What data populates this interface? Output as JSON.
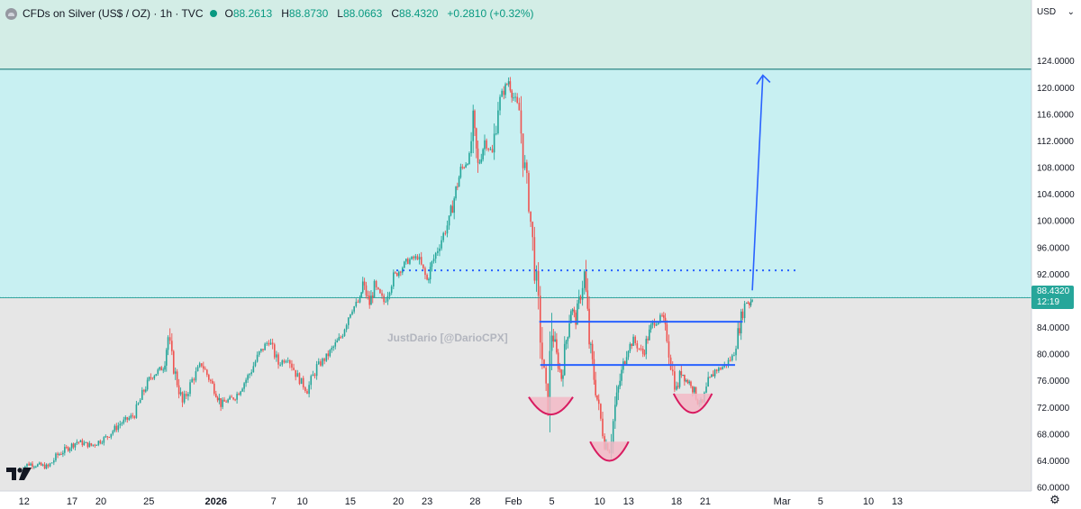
{
  "legend": {
    "title": "CFDs on Silver (US$ / OZ) · 1h · TVC",
    "open_label": "O",
    "open": "88.2613",
    "high_label": "H",
    "high": "88.8730",
    "low_label": "L",
    "low": "88.0663",
    "close_label": "C",
    "close": "88.4320",
    "change": "+0.2810 (+0.32%)"
  },
  "currency": "USD",
  "watermark": "JustDario [@DarioCPX]",
  "current_price": {
    "value": "88.4320",
    "countdown": "12:19"
  },
  "colors": {
    "up": "#26a69a",
    "down": "#ef5350",
    "blue_zone": "#c8f0f2",
    "upper_zone": "#d3ede6",
    "lower_zone": "#e6e6e6",
    "drawing_blue": "#2962ff",
    "cup_pink": "#f2b8c6",
    "cup_stroke": "#d81b60"
  },
  "icons": {
    "symbol": "metal-symbol-icon",
    "settings": "gear-icon",
    "currency_dropdown": "chevron-down-icon",
    "logo": "tradingview-logo-icon"
  },
  "chart_data": {
    "type": "candlestick",
    "title": "CFDs on Silver (US$ / OZ)",
    "timeframe": "1h",
    "source": "TVC",
    "ylim": [
      60,
      126
    ],
    "y_ticks": [
      "124.0000",
      "120.0000",
      "116.0000",
      "112.0000",
      "108.0000",
      "104.0000",
      "100.0000",
      "96.0000",
      "92.0000",
      "88.0000",
      "84.0000",
      "80.0000",
      "76.0000",
      "72.0000",
      "68.0000",
      "64.0000",
      "60.0000"
    ],
    "x_ticks": [
      {
        "label": "12",
        "day": -8
      },
      {
        "label": "17",
        "day": -3
      },
      {
        "label": "20",
        "day": 0
      },
      {
        "label": "25",
        "day": 5
      },
      {
        "label": "2026",
        "day": 12
      },
      {
        "label": "7",
        "day": 18
      },
      {
        "label": "10",
        "day": 21
      },
      {
        "label": "15",
        "day": 26
      },
      {
        "label": "20",
        "day": 31
      },
      {
        "label": "23",
        "day": 34
      },
      {
        "label": "28",
        "day": 39
      },
      {
        "label": "Feb",
        "day": 43
      },
      {
        "label": "5",
        "day": 47
      },
      {
        "label": "10",
        "day": 52
      },
      {
        "label": "13",
        "day": 55
      },
      {
        "label": "18",
        "day": 60
      },
      {
        "label": "21",
        "day": 63
      },
      {
        "label": "Mar",
        "day": 71
      },
      {
        "label": "5",
        "day": 75
      },
      {
        "label": "10",
        "day": 80
      },
      {
        "label": "13",
        "day": 83
      }
    ],
    "price_path": [
      [
        -8.7,
        62.5
      ],
      [
        -7.5,
        63.5
      ],
      [
        -5.5,
        63.0
      ],
      [
        -4.5,
        64.8
      ],
      [
        -2.5,
        66.8
      ],
      [
        -1,
        66.2
      ],
      [
        0.5,
        67.4
      ],
      [
        2,
        69.5
      ],
      [
        3.5,
        70.8
      ],
      [
        4.5,
        74.5
      ],
      [
        5.2,
        76.5
      ],
      [
        6.5,
        78.0
      ],
      [
        7.0,
        82.5
      ],
      [
        7.4,
        79.0
      ],
      [
        8.5,
        72.5
      ],
      [
        9.5,
        76.0
      ],
      [
        10.5,
        78.5
      ],
      [
        12,
        74.2
      ],
      [
        12.5,
        72.5
      ],
      [
        14,
        73.5
      ],
      [
        15.5,
        77.0
      ],
      [
        16.5,
        80.0
      ],
      [
        17.5,
        82.0
      ],
      [
        18.5,
        78.5
      ],
      [
        19.5,
        79.5
      ],
      [
        20.5,
        76.5
      ],
      [
        21.5,
        74.5
      ],
      [
        22.5,
        78.0
      ],
      [
        23.5,
        79.5
      ],
      [
        25,
        82.5
      ],
      [
        26,
        86.5
      ],
      [
        27,
        88.0
      ],
      [
        27.3,
        90.5
      ],
      [
        28,
        87.5
      ],
      [
        28.5,
        90.0
      ],
      [
        29.5,
        87.8
      ],
      [
        30.5,
        91.5
      ],
      [
        32,
        94.0
      ],
      [
        33,
        94.5
      ],
      [
        34,
        91.0
      ],
      [
        34.5,
        93.5
      ],
      [
        35.3,
        96.5
      ],
      [
        36.3,
        100.0
      ],
      [
        37.0,
        104.5
      ],
      [
        37.5,
        107.5
      ],
      [
        38.4,
        109.5
      ],
      [
        38.8,
        114.5
      ],
      [
        39.3,
        108.0
      ],
      [
        40.0,
        112.0
      ],
      [
        40.8,
        110.0
      ],
      [
        41.4,
        117.5
      ],
      [
        42.0,
        119.5
      ],
      [
        42.5,
        121.0
      ],
      [
        43.0,
        118.5
      ],
      [
        43.6,
        116.5
      ],
      [
        44.0,
        110.0
      ],
      [
        44.6,
        103.0
      ],
      [
        45.0,
        96.5
      ],
      [
        45.4,
        90.0
      ],
      [
        45.8,
        83.0
      ],
      [
        46.2,
        76.0
      ],
      [
        46.6,
        72.2
      ],
      [
        47.0,
        84.0
      ],
      [
        47.5,
        79.5
      ],
      [
        48.0,
        76.5
      ],
      [
        48.5,
        82.0
      ],
      [
        49.0,
        87.0
      ],
      [
        49.5,
        85.0
      ],
      [
        50.0,
        89.0
      ],
      [
        50.4,
        92.0
      ],
      [
        50.9,
        82.0
      ],
      [
        51.4,
        76.5
      ],
      [
        51.9,
        71.5
      ],
      [
        52.5,
        67.0
      ],
      [
        53.0,
        65.5
      ],
      [
        53.6,
        72.0
      ],
      [
        54.1,
        76.0
      ],
      [
        54.8,
        80.5
      ],
      [
        55.5,
        82.0
      ],
      [
        56.5,
        80.0
      ],
      [
        57.0,
        82.5
      ],
      [
        57.5,
        84.5
      ],
      [
        58.5,
        85.5
      ],
      [
        59.0,
        82.5
      ],
      [
        59.6,
        77.0
      ],
      [
        60.0,
        74.5
      ],
      [
        60.5,
        77.5
      ],
      [
        61.0,
        76.0
      ],
      [
        61.5,
        75.5
      ],
      [
        62.2,
        73.0
      ],
      [
        62.7,
        72.5
      ],
      [
        63.3,
        75.5
      ],
      [
        64.0,
        77.5
      ],
      [
        64.6,
        77.8
      ],
      [
        65.2,
        78.5
      ],
      [
        65.8,
        79.5
      ],
      [
        66.4,
        83.0
      ],
      [
        66.9,
        86.5
      ],
      [
        67.3,
        88.0
      ],
      [
        67.6,
        87.5
      ],
      [
        67.9,
        88.4
      ]
    ],
    "levels": {
      "upper_zone_top": 122.7,
      "blue_zone_bottom": 88.4,
      "dotted_line": 92.5,
      "neckline_upper": 84.8,
      "neckline_lower": 78.3,
      "target_arrow": [
        [
          67.9,
          89.5
        ],
        [
          69.0,
          121.8
        ]
      ]
    },
    "current_price": 88.432
  }
}
